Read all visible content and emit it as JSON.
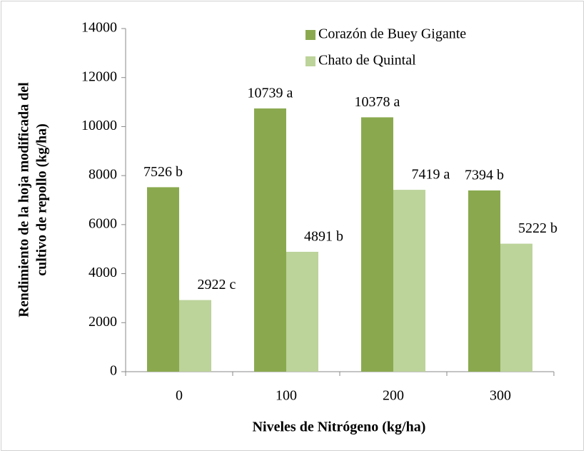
{
  "chart_data": {
    "type": "bar",
    "ylabel": [
      "Rendimiento de la hoja modificada del",
      "cultivo  de repollo (kg/ha)"
    ],
    "xlabel": "Niveles de Nitrógeno (kg/ha)",
    "categories": [
      "0",
      "100",
      "200",
      "300"
    ],
    "series": [
      {
        "name": "Corazón de Buey Gigante",
        "color": "#8aa94f",
        "values": [
          7526,
          10739,
          10378,
          7394
        ],
        "value_labels": [
          "7526 b",
          "10739 a",
          "10378 a",
          "7394 b"
        ]
      },
      {
        "name": "Chato de Quintal",
        "color": "#bcd39a",
        "values": [
          2922,
          4891,
          7419,
          5222
        ],
        "value_labels": [
          "2922 c",
          "4891 b",
          "7419 a",
          "5222 b"
        ]
      }
    ],
    "ylim": [
      0,
      14000
    ],
    "yticks": [
      0,
      2000,
      4000,
      6000,
      8000,
      10000,
      12000,
      14000
    ]
  }
}
